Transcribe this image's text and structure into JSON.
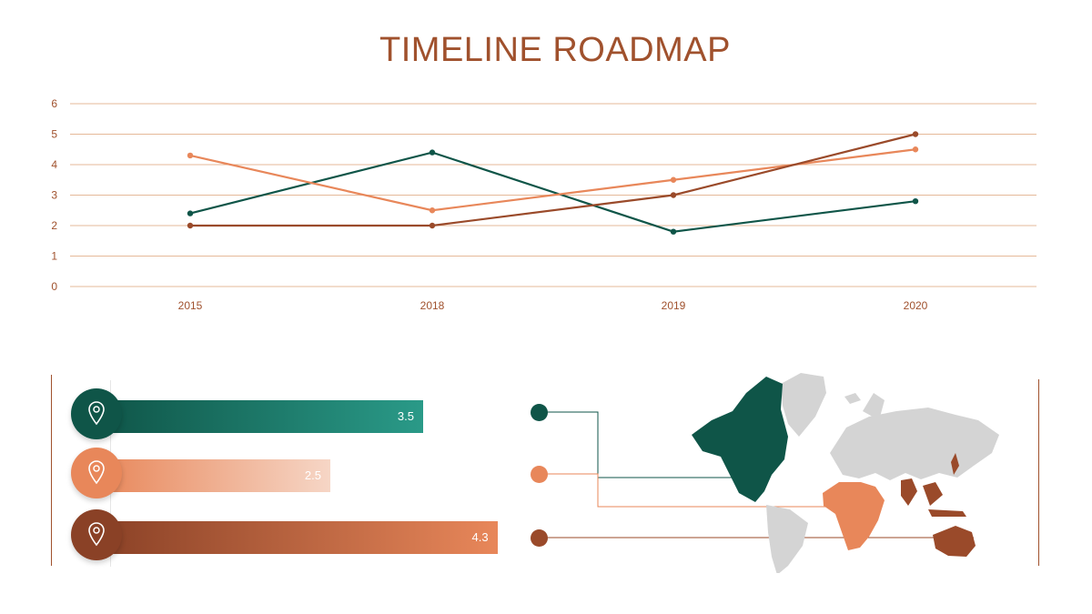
{
  "title": "TIMELINE ROADMAP",
  "colors": {
    "teal": "#0f5548",
    "orange": "#e8875a",
    "brown": "#9a4a2a",
    "gridline": "#e5b999",
    "axis_text": "#a0512d",
    "map_gray": "#d4d4d4"
  },
  "chart_data": {
    "type": "line",
    "categories": [
      "2015",
      "2018",
      "2019",
      "2020"
    ],
    "ylim": [
      0,
      6
    ],
    "yticks": [
      "0",
      "1",
      "2",
      "3",
      "4",
      "5",
      "6"
    ],
    "grid": true,
    "legend": "none",
    "series": [
      {
        "color": "#0f5548",
        "values": [
          2.4,
          4.4,
          1.8,
          2.8
        ]
      },
      {
        "color": "#e8875a",
        "values": [
          4.3,
          2.5,
          3.5,
          4.5
        ]
      },
      {
        "color": "#9a4a2a",
        "values": [
          2.0,
          2.0,
          3.0,
          5.0
        ]
      }
    ]
  },
  "bars": [
    {
      "value": 3.5,
      "label": "3.5",
      "icon": "location-pin-icon",
      "color": "#0f5548",
      "gradient_end": "#2a9a88"
    },
    {
      "value": 2.5,
      "label": "2.5",
      "icon": "location-pin-icon",
      "color": "#e8875a",
      "gradient_end": "#f6d6c6"
    },
    {
      "value": 4.3,
      "label": "4.3",
      "icon": "location-pin-icon",
      "color": "#8a4126",
      "gradient_end": "#e8875a"
    }
  ],
  "map": {
    "regions": [
      {
        "name": "north-america",
        "color": "#0f5548"
      },
      {
        "name": "africa",
        "color": "#e8875a"
      },
      {
        "name": "australia-and-southeast-asia",
        "color": "#9a4a2a"
      }
    ]
  }
}
